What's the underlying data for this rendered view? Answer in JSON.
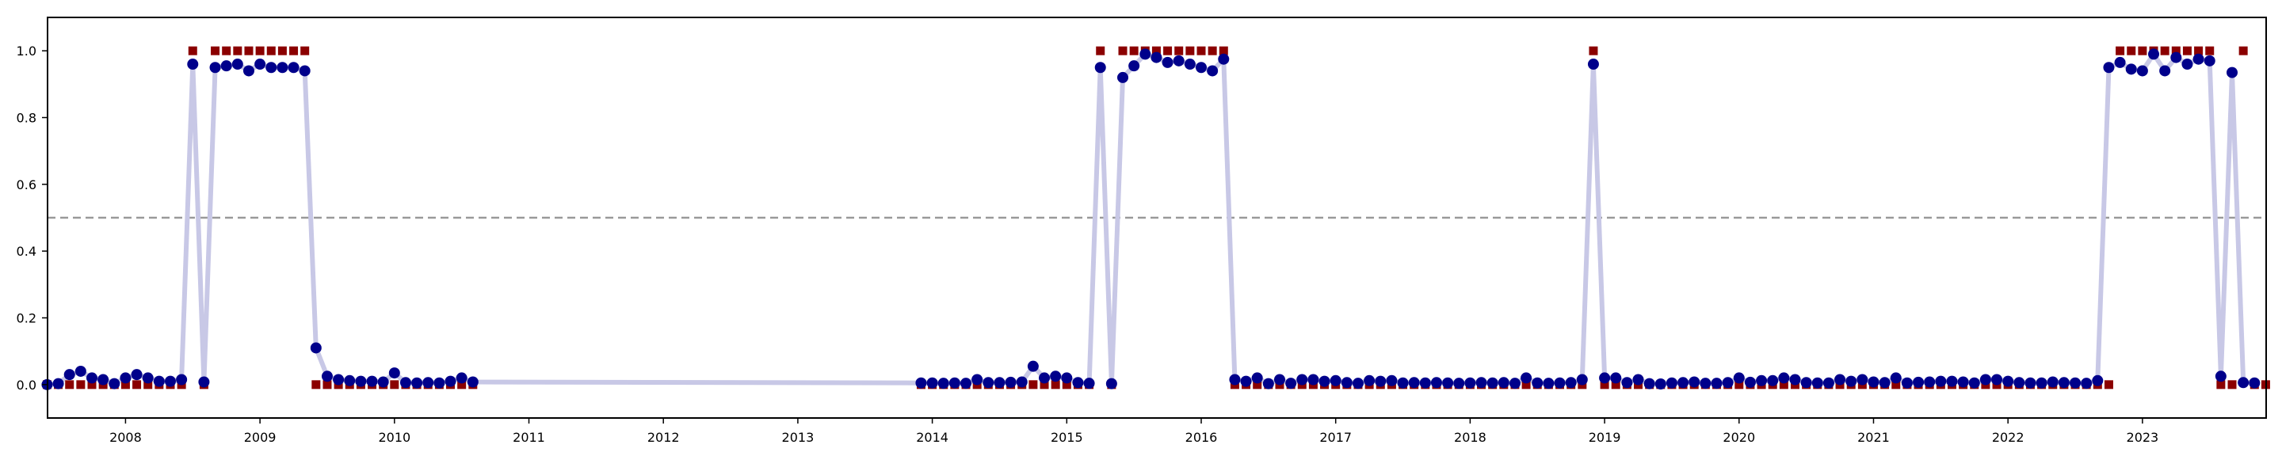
{
  "chart_data": {
    "type": "line",
    "title": "",
    "xlabel": "",
    "ylabel": "",
    "xlim": [
      2007.42,
      2023.92
    ],
    "ylim": [
      -0.1,
      1.1
    ],
    "x_ticks": [
      2008,
      2009,
      2010,
      2011,
      2012,
      2013,
      2014,
      2015,
      2016,
      2017,
      2018,
      2019,
      2020,
      2021,
      2022,
      2023
    ],
    "x_tick_labels": [
      "2008",
      "2009",
      "2010",
      "2011",
      "2012",
      "2013",
      "2014",
      "2015",
      "2016",
      "2017",
      "2018",
      "2019",
      "2020",
      "2021",
      "2022",
      "2023"
    ],
    "y_ticks": [
      0.0,
      0.2,
      0.4,
      0.6,
      0.8,
      1.0
    ],
    "y_tick_labels": [
      "0.0",
      "0.2",
      "0.4",
      "0.6",
      "0.8",
      "1.0"
    ],
    "threshold": 0.5,
    "grid": false,
    "legend": "none",
    "colors": {
      "line": "#c8c8e6",
      "points": "#00008b",
      "markers": "#8b0000",
      "threshold": "#999999",
      "axes": "#000000"
    },
    "series": [
      {
        "kind": "probability",
        "segments": [
          {
            "start": "2007-06",
            "values": [
              0.0,
              0.003,
              0.03,
              0.04,
              0.02,
              0.015,
              0.003,
              0.02,
              0.03,
              0.02,
              0.01,
              0.01,
              0.015,
              0.96,
              0.008,
              0.95,
              0.955,
              0.96,
              0.94,
              0.96,
              0.95,
              0.95,
              0.95,
              0.94,
              0.11,
              0.025,
              0.015,
              0.012,
              0.01,
              0.01,
              0.008,
              0.035,
              0.006,
              0.005,
              0.006,
              0.005,
              0.01,
              0.02,
              0.008
            ]
          },
          {
            "start": "2013-12",
            "values": [
              0.005,
              0.005,
              0.004,
              0.005,
              0.004,
              0.015,
              0.006,
              0.006,
              0.007,
              0.008,
              0.055,
              0.02,
              0.025,
              0.02,
              0.006,
              0.004,
              0.95,
              0.003,
              0.92,
              0.955,
              0.99,
              0.98,
              0.965,
              0.97,
              0.96,
              0.95,
              0.94,
              0.975,
              0.015,
              0.01,
              0.02,
              0.003,
              0.015,
              0.004,
              0.015,
              0.015,
              0.01,
              0.012,
              0.006,
              0.004,
              0.012,
              0.01,
              0.012,
              0.005,
              0.006,
              0.005,
              0.006,
              0.005,
              0.004,
              0.005,
              0.006,
              0.005,
              0.006,
              0.004,
              0.02,
              0.005,
              0.004,
              0.005,
              0.006,
              0.015,
              0.96,
              0.02,
              0.02,
              0.006,
              0.015,
              0.003,
              0.002,
              0.005,
              0.006,
              0.008,
              0.004,
              0.004,
              0.006,
              0.02,
              0.007,
              0.012,
              0.012,
              0.02,
              0.015,
              0.006,
              0.005,
              0.005,
              0.015,
              0.01,
              0.015,
              0.008,
              0.006,
              0.02,
              0.005,
              0.007,
              0.008,
              0.01,
              0.01,
              0.008,
              0.005,
              0.015,
              0.015,
              0.01,
              0.006,
              0.005,
              0.005,
              0.008,
              0.006,
              0.005,
              0.004,
              0.012,
              0.95,
              0.965,
              0.945,
              0.94,
              0.99,
              0.94,
              0.98,
              0.96,
              0.975,
              0.97,
              0.025,
              0.935,
              0.006,
              0.005
            ]
          }
        ]
      },
      {
        "kind": "binary-marker",
        "marker": "square",
        "ones": [
          [
            "2008-07",
            "2008-07"
          ],
          [
            "2008-09",
            "2009-05"
          ],
          [
            "2015-04",
            "2015-04"
          ],
          [
            "2015-06",
            "2016-03"
          ],
          [
            "2018-12",
            "2018-12"
          ],
          [
            "2022-11",
            "2023-07"
          ],
          [
            "2023-10",
            "2023-10"
          ]
        ],
        "zeros": [
          [
            "2007-06",
            "2008-06"
          ],
          [
            "2008-08",
            "2008-08"
          ],
          [
            "2009-06",
            "2010-08"
          ],
          [
            "2013-12",
            "2015-03"
          ],
          [
            "2015-05",
            "2015-05"
          ],
          [
            "2016-04",
            "2018-11"
          ],
          [
            "2019-01",
            "2022-10"
          ],
          [
            "2023-08",
            "2023-09"
          ],
          [
            "2023-11",
            "2023-12"
          ]
        ]
      }
    ]
  }
}
